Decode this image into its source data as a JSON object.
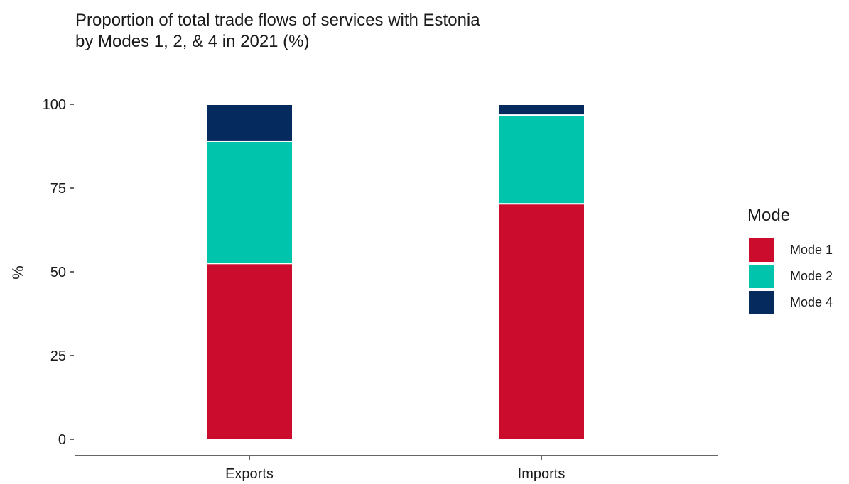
{
  "chart_data": {
    "type": "bar",
    "stacked": true,
    "title_lines": [
      "Proportion of total trade flows of services with Estonia",
      "by Modes 1, 2, & 4 in 2021 (%)"
    ],
    "xlabel": "",
    "ylabel": "%",
    "categories": [
      "Exports",
      "Imports"
    ],
    "series": [
      {
        "name": "Mode 1",
        "color": "#cc0c2c",
        "values": [
          52.5,
          70.3
        ]
      },
      {
        "name": "Mode 2",
        "color": "#00c4ac",
        "values": [
          36.5,
          26.5
        ]
      },
      {
        "name": "Mode 4",
        "color": "#042a5e",
        "values": [
          11.0,
          3.2
        ]
      }
    ],
    "ylim": [
      0,
      100
    ],
    "yticks": [
      0,
      25,
      50,
      75,
      100
    ],
    "grid": false,
    "legend": {
      "title": "Mode",
      "position": "right"
    }
  }
}
